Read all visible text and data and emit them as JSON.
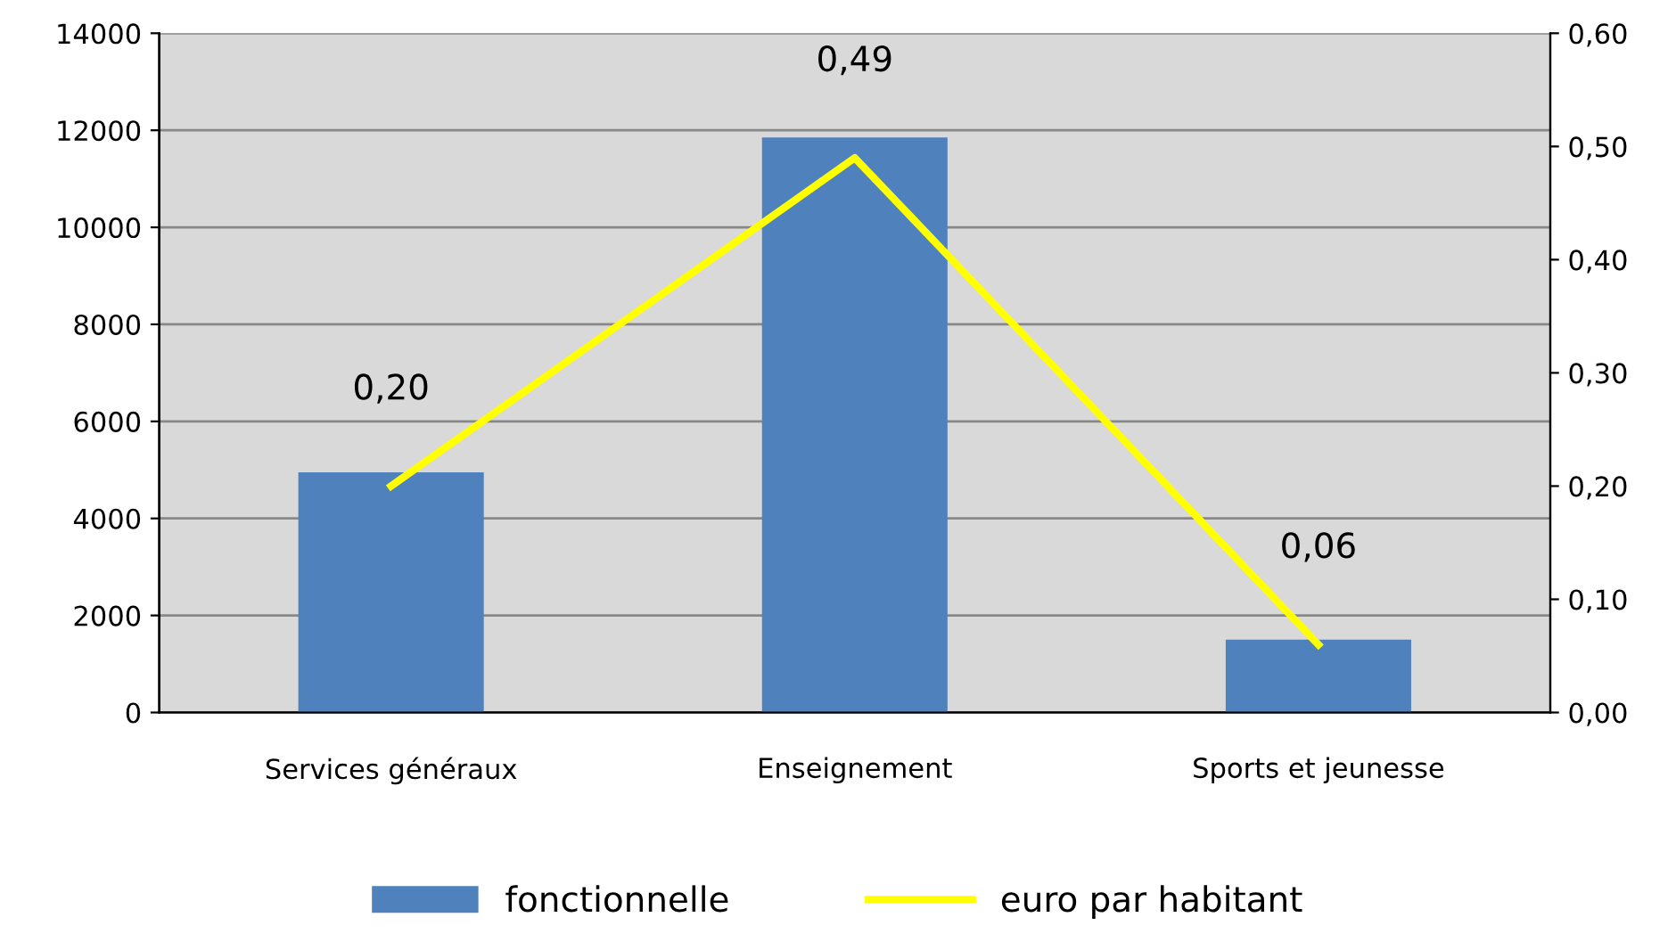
{
  "chart_data": {
    "type": "bar",
    "categories": [
      "Services généraux",
      "Enseignement",
      "Sports et jeunesse"
    ],
    "series": [
      {
        "name": "fonctionnelle",
        "color": "#4f81bd",
        "values": [
          4950,
          11850,
          1500
        ]
      },
      {
        "name": "euro par habitant",
        "type": "line",
        "axis": "y2",
        "color": "#ffff00",
        "values": [
          0.2,
          0.49,
          0.06
        ],
        "value_labels": [
          "0,20",
          "0,49",
          "0,06"
        ]
      }
    ],
    "ylim": [
      0,
      14000
    ],
    "yticks": [
      0,
      2000,
      4000,
      6000,
      8000,
      10000,
      12000,
      14000
    ],
    "y2lim": [
      0,
      0.6
    ],
    "y2ticks": [
      {
        "value": 0,
        "label": "0,00"
      },
      {
        "value": 0.1,
        "label": "0,10"
      },
      {
        "value": 0.2,
        "label": "0,20"
      },
      {
        "value": 0.3,
        "label": "0,30"
      },
      {
        "value": 0.4,
        "label": "0,40"
      },
      {
        "value": 0.5,
        "label": "0,50"
      },
      {
        "value": 0.6,
        "label": "0,60"
      }
    ],
    "grid": "y",
    "legend": "bottom",
    "marker": "none",
    "line_style": "solid"
  }
}
